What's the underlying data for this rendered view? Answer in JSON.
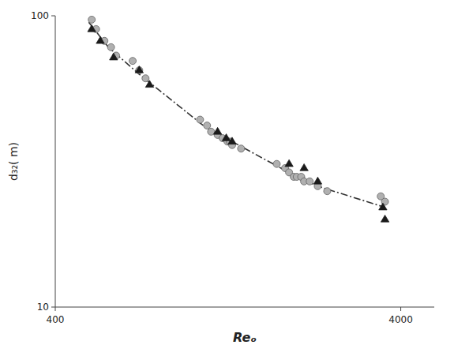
{
  "chart_data": {
    "type": "scatter",
    "xlabel": "Reₒ",
    "ylabel": "d₃₂( m)",
    "log": true,
    "xlim": [
      400,
      5000
    ],
    "ylim": [
      10,
      100
    ],
    "xticks": [
      400,
      4000
    ],
    "yticks": [
      10,
      100
    ],
    "series": [
      {
        "type": "line",
        "line_style": "dashdot",
        "color": "#333333",
        "x": [
          500,
          570,
          700,
          1100,
          1300,
          2000,
          2300,
          3600
        ],
        "values": [
          95,
          78,
          63,
          41,
          37,
          28,
          26,
          22
        ]
      },
      {
        "type": "scatter",
        "marker": "circle",
        "color": "#b0b0b0",
        "x": [
          510,
          525,
          555,
          580,
          600,
          670,
          700,
          730,
          1050,
          1100,
          1130,
          1180,
          1220,
          1260,
          1280,
          1300,
          1380,
          1750,
          1850,
          1900,
          1960,
          2000,
          2060,
          2100,
          2180,
          2300,
          2450,
          3500,
          3600
        ],
        "values": [
          97,
          90,
          82,
          78,
          73,
          70,
          65,
          61,
          44,
          42,
          40,
          39,
          38,
          37,
          37,
          36,
          35,
          31,
          30,
          29,
          28,
          28,
          28,
          27,
          27,
          26,
          25,
          24,
          23
        ]
      },
      {
        "type": "scatter",
        "marker": "triangle",
        "color": "#1a1a1a",
        "x": [
          510,
          540,
          590,
          700,
          750,
          1180,
          1250,
          1300,
          1900,
          2100,
          2300,
          3550,
          3600
        ],
        "values": [
          90,
          82,
          72,
          65,
          58,
          40,
          38,
          37,
          31,
          30,
          27,
          22,
          20
        ]
      }
    ]
  }
}
